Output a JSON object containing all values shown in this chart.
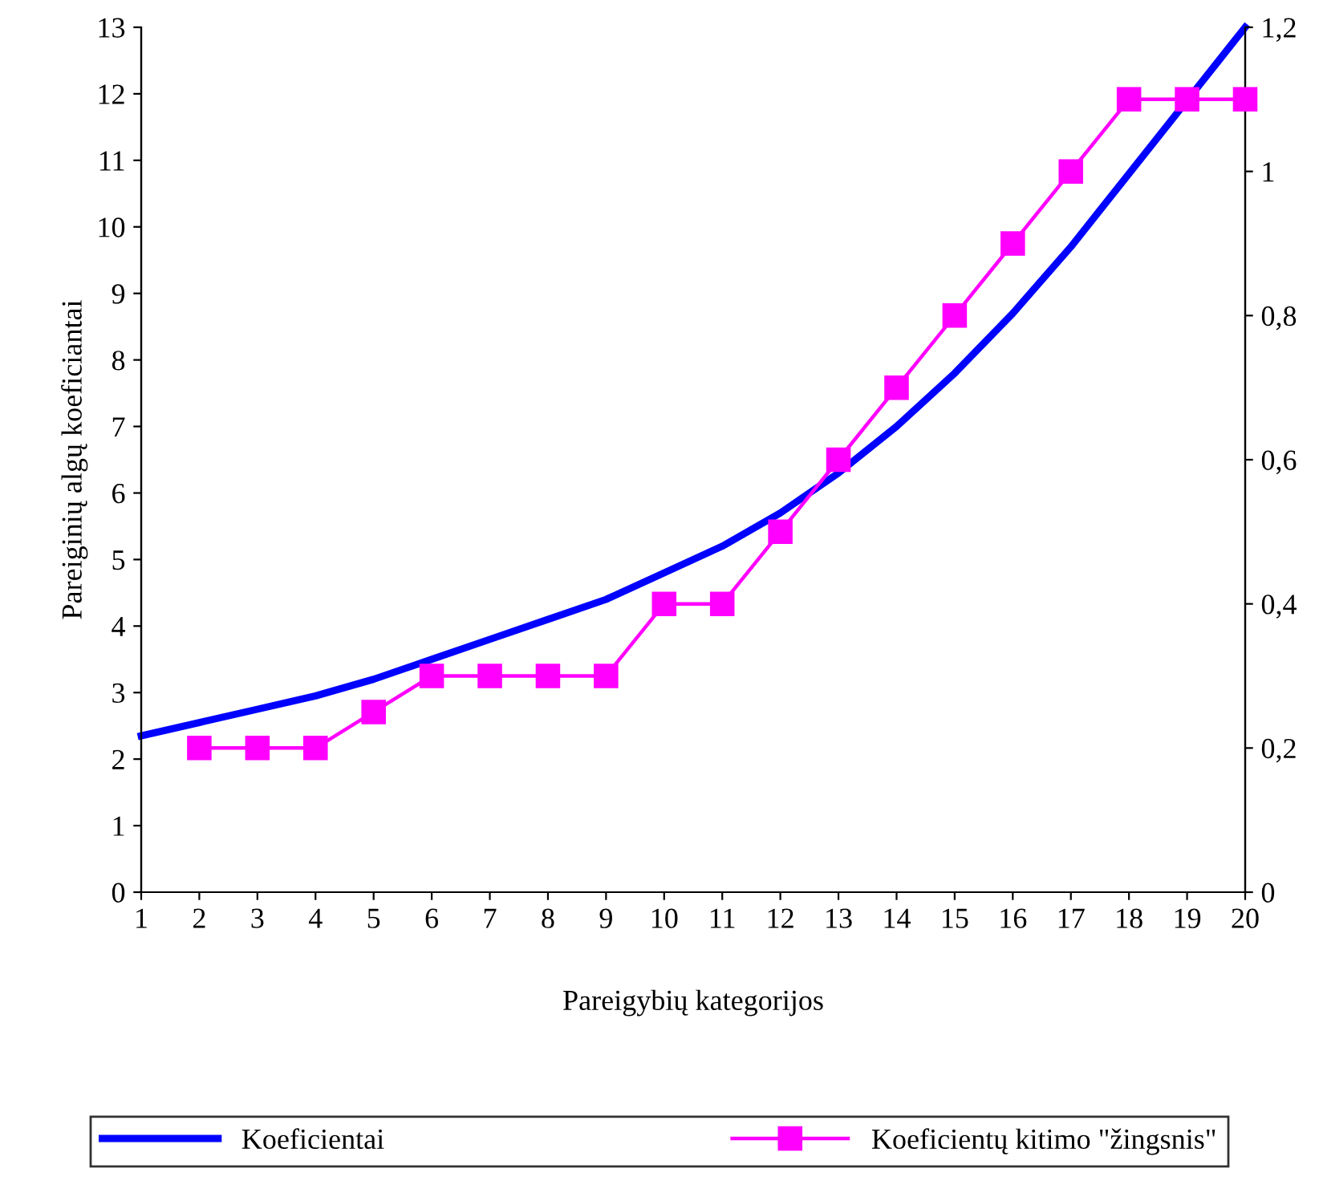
{
  "chart_data": {
    "type": "line",
    "xlabel": "Pareigybių kategorijos",
    "ylabel": "Pareiginių algų koeficiantai",
    "x": [
      1,
      2,
      3,
      4,
      5,
      6,
      7,
      8,
      9,
      10,
      11,
      12,
      13,
      14,
      15,
      16,
      17,
      18,
      19,
      20
    ],
    "series": [
      {
        "name": "Koeficientai",
        "color": "#0000ff",
        "marker": "none",
        "values": [
          2.35,
          2.55,
          2.75,
          2.95,
          3.2,
          3.5,
          3.8,
          4.1,
          4.4,
          4.8,
          5.2,
          5.7,
          6.3,
          7.0,
          7.8,
          8.7,
          9.7,
          10.8,
          11.9,
          13.0
        ]
      },
      {
        "name": "Koeficientų kitimo \"žingsnis\"",
        "color": "#ff00ff",
        "marker": "square",
        "axis": "y2",
        "x": [
          2,
          3,
          4,
          5,
          6,
          7,
          8,
          9,
          10,
          11,
          12,
          13,
          14,
          15,
          16,
          17,
          18,
          19,
          20
        ],
        "values": [
          0.2,
          0.2,
          0.2,
          0.25,
          0.3,
          0.3,
          0.3,
          0.3,
          0.4,
          0.4,
          0.5,
          0.6,
          0.7,
          0.8,
          0.9,
          1.0,
          1.1,
          1.1,
          1.1
        ]
      }
    ],
    "xlim": [
      1,
      20
    ],
    "xticks": [
      1,
      2,
      3,
      4,
      5,
      6,
      7,
      8,
      9,
      10,
      11,
      12,
      13,
      14,
      15,
      16,
      17,
      18,
      19,
      20
    ],
    "ylim": [
      0,
      13
    ],
    "yticks": [
      0,
      1,
      2,
      3,
      4,
      5,
      6,
      7,
      8,
      9,
      10,
      11,
      12,
      13
    ],
    "y2lim": [
      0,
      1.2
    ],
    "y2ticks": [
      0,
      {
        "value": 0.2,
        "label": "0,2"
      },
      {
        "value": 0.4,
        "label": "0,4"
      },
      {
        "value": 0.6,
        "label": "0,6"
      },
      {
        "value": 0.8,
        "label": "0,8"
      },
      1,
      {
        "value": 1.2,
        "label": "1,2"
      }
    ],
    "grid": false,
    "legend": "bottom",
    "line_style": "solid"
  }
}
